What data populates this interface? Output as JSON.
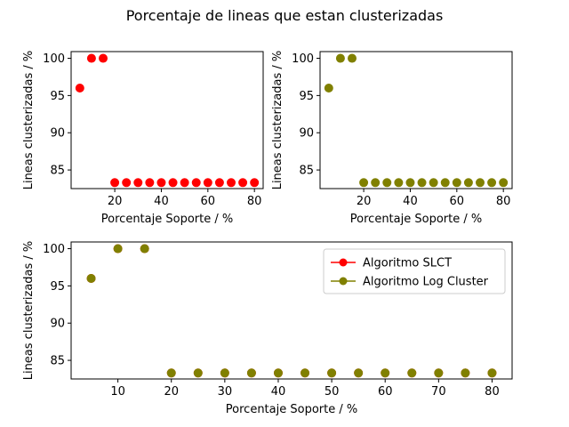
{
  "figure": {
    "title": "Porcentaje de lineas que estan clusterizadas"
  },
  "colors": {
    "slct": "#ff0000",
    "logcluster": "#808000"
  },
  "chart_data": [
    {
      "type": "scatter",
      "xlabel": "Porcentaje Soporte / %",
      "ylabel": "Lineas clusterizadas / %",
      "xlim": [
        1.25,
        83.75
      ],
      "ylim": [
        82.5,
        100.9
      ],
      "xticks": [
        20,
        40,
        60,
        80
      ],
      "yticks": [
        85,
        90,
        95,
        100
      ],
      "series": [
        {
          "color": "#ff0000",
          "x": [
            5,
            10,
            15,
            20,
            25,
            30,
            35,
            40,
            45,
            50,
            55,
            60,
            65,
            70,
            75,
            80
          ],
          "y": [
            96,
            100,
            100,
            83.3,
            83.3,
            83.3,
            83.3,
            83.3,
            83.3,
            83.3,
            83.3,
            83.3,
            83.3,
            83.3,
            83.3,
            83.3
          ]
        }
      ]
    },
    {
      "type": "scatter",
      "xlabel": "Porcentaje Soporte / %",
      "ylabel": "Lineas clusterizadas / %",
      "xlim": [
        1.25,
        83.75
      ],
      "ylim": [
        82.5,
        100.9
      ],
      "xticks": [
        20,
        40,
        60,
        80
      ],
      "yticks": [
        85,
        90,
        95,
        100
      ],
      "series": [
        {
          "color": "#808000",
          "x": [
            5,
            10,
            15,
            20,
            25,
            30,
            35,
            40,
            45,
            50,
            55,
            60,
            65,
            70,
            75,
            80
          ],
          "y": [
            96,
            100,
            100,
            83.3,
            83.3,
            83.3,
            83.3,
            83.3,
            83.3,
            83.3,
            83.3,
            83.3,
            83.3,
            83.3,
            83.3,
            83.3
          ]
        }
      ]
    },
    {
      "type": "scatter",
      "xlabel": "Porcentaje Soporte / %",
      "ylabel": "Lineas clusterizadas / %",
      "xlim": [
        1.25,
        83.75
      ],
      "ylim": [
        82.5,
        100.9
      ],
      "xticks": [
        10,
        20,
        30,
        40,
        50,
        60,
        70,
        80
      ],
      "yticks": [
        85,
        90,
        95,
        100
      ],
      "legend": "top-right",
      "series": [
        {
          "name": "Algoritmo SLCT",
          "color": "#ff0000",
          "x": [
            5,
            10,
            15,
            20,
            25,
            30,
            35,
            40,
            45,
            50,
            55,
            60,
            65,
            70,
            75,
            80
          ],
          "y": [
            96,
            100,
            100,
            83.3,
            83.3,
            83.3,
            83.3,
            83.3,
            83.3,
            83.3,
            83.3,
            83.3,
            83.3,
            83.3,
            83.3,
            83.3
          ]
        },
        {
          "name": "Algoritmo Log Cluster",
          "color": "#808000",
          "x": [
            5,
            10,
            15,
            20,
            25,
            30,
            35,
            40,
            45,
            50,
            55,
            60,
            65,
            70,
            75,
            80
          ],
          "y": [
            96,
            100,
            100,
            83.3,
            83.3,
            83.3,
            83.3,
            83.3,
            83.3,
            83.3,
            83.3,
            83.3,
            83.3,
            83.3,
            83.3,
            83.3
          ]
        }
      ]
    }
  ]
}
